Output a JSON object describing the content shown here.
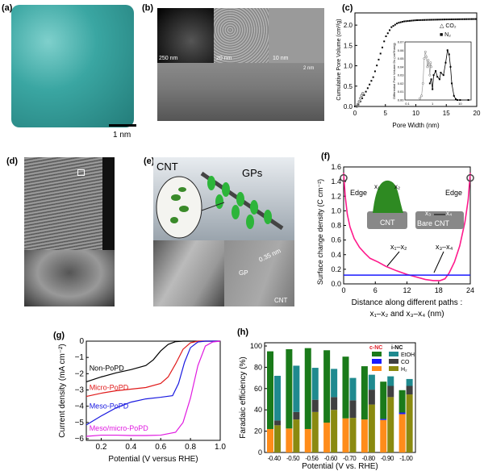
{
  "panels": {
    "a": {
      "label": "(a)",
      "scale": "1 nm"
    },
    "b": {
      "label": "(b)",
      "scales": [
        "250 nm",
        "20 nm",
        "10 nm",
        "2 nm"
      ]
    },
    "c": {
      "label": "(c)"
    },
    "d": {
      "label": "(d)"
    },
    "e": {
      "label": "(e)",
      "cnt": "CNT",
      "gps": "GPs",
      "gp": "GP",
      "spacing": "0.35 nm",
      "cnt2": "CNT"
    },
    "f": {
      "label": "(f)",
      "edge_left": "Edge",
      "edge_right": "Edge",
      "cnt": "CNT",
      "bare_cnt": "Bare CNT",
      "x1": "x₁",
      "x2": "x₂",
      "x3": "x₃",
      "x4": "x₄",
      "path12": "x₁–x₂",
      "path34": "x₃–x₄"
    },
    "g": {
      "label": "(g)"
    },
    "h": {
      "label": "(h)"
    }
  },
  "colors": {
    "cnc": "#e0202a",
    "h2_c": "#ff8c1a",
    "co_c": "#1a1aff",
    "etoh_c": "#1a7a1a",
    "h2_i": "#8a8a10",
    "co_i": "#404040",
    "etoh_i": "#1f8a8f"
  },
  "chart_data": [
    {
      "id": "c",
      "type": "scatter",
      "xlabel": "Pore Width (nm)",
      "ylabel": "Cumulative Pore Volume (cm³/g)",
      "xlim": [
        0,
        20
      ],
      "ylim": [
        0,
        2.3
      ],
      "xticks": [
        "0",
        "5",
        "10",
        "15",
        "20"
      ],
      "yticks": [
        "0.0",
        "0.5",
        "1.0",
        "1.5",
        "2.0"
      ],
      "legend": [
        "CO₂",
        "N₂"
      ],
      "legend_position": "top-right",
      "series": [
        {
          "name": "N₂",
          "x": [
            0,
            0.5,
            1,
            1.5,
            2,
            3,
            4,
            5,
            6,
            7,
            8,
            10,
            12,
            15,
            20
          ],
          "y": [
            0,
            0.02,
            0.15,
            0.28,
            0.42,
            0.72,
            1.2,
            1.7,
            1.95,
            2.05,
            2.09,
            2.12,
            2.13,
            2.14,
            2.15
          ]
        },
        {
          "name": "CO₂",
          "x": [
            0.3,
            0.5,
            0.7,
            0.9,
            1.1,
            1.3
          ],
          "y": [
            0,
            0.05,
            0.12,
            0.2,
            0.27,
            0.32
          ]
        }
      ],
      "inset": {
        "ylabel": "Differential Pore Volume Dv (cm³/nm/g)",
        "xticks": [
          "0.1",
          "1",
          "10"
        ],
        "yticks": [
          "0.00",
          "0.01",
          "0.02",
          "0.03",
          "0.04",
          "0.05",
          "0.06",
          "0.07"
        ],
        "series": [
          {
            "name": "CO₂",
            "x": [
              0.35,
              0.4,
              0.45,
              0.5,
              0.55,
              0.6,
              0.65,
              0.7,
              0.75,
              0.8,
              0.85,
              0.9
            ],
            "y": [
              0.002,
              0.005,
              0.02,
              0.05,
              0.058,
              0.052,
              0.04,
              0.048,
              0.042,
              0.03,
              0.045,
              0.04
            ]
          },
          {
            "name": "N₂",
            "x": [
              0.8,
              0.9,
              1,
              1.1,
              1.3,
              1.5,
              1.8,
              2,
              2.5,
              3,
              3.5,
              4,
              4.5,
              5,
              6,
              7,
              8,
              10,
              20
            ],
            "y": [
              0.02,
              0.025,
              0.013,
              0.03,
              0.035,
              0.028,
              0.025,
              0.033,
              0.03,
              0.045,
              0.06,
              0.055,
              0.04,
              0.02,
              0.005,
              0.001,
              0,
              0,
              0
            ]
          }
        ]
      }
    },
    {
      "id": "f",
      "type": "line",
      "xlabel": "Distance along different paths :",
      "xlabel2": "x₁–x₂ and x₃–x₄ (nm)",
      "ylabel": "Surface change density (C cm⁻²)",
      "xlim": [
        0,
        24
      ],
      "ylim": [
        0,
        1.6
      ],
      "xticks": [
        "0",
        "6",
        "12",
        "18",
        "24"
      ],
      "yticks": [
        "0.0",
        "0.2",
        "0.4",
        "0.6",
        "0.8",
        "1.0",
        "1.2",
        "1.4",
        "1.6"
      ],
      "series": [
        {
          "name": "x₁–x₂",
          "color": "#ff1a8c",
          "x": [
            0,
            0.3,
            0.7,
            1.2,
            2,
            3,
            4,
            5,
            6.5,
            8,
            10,
            12,
            14,
            15.5,
            17,
            18.3,
            19.2,
            20,
            21,
            22,
            23,
            23.6,
            24
          ],
          "y": [
            1.52,
            1.2,
            0.95,
            0.78,
            0.62,
            0.5,
            0.42,
            0.35,
            0.3,
            0.24,
            0.18,
            0.13,
            0.09,
            0.06,
            0.045,
            0.045,
            0.07,
            0.15,
            0.3,
            0.52,
            0.85,
            1.15,
            1.52
          ]
        },
        {
          "name": "x₃–x₄",
          "color": "#1a1aff",
          "x": [
            0,
            24
          ],
          "y": [
            0.12,
            0.12
          ]
        }
      ]
    },
    {
      "id": "g",
      "type": "line",
      "xlabel": "Potential (V versus RHE)",
      "ylabel": "Current density (mA cm⁻²)",
      "xlim": [
        0.1,
        1.0
      ],
      "ylim": [
        -6.2,
        0
      ],
      "xticks": [
        "0.2",
        "0.4",
        "0.6",
        "0.8",
        "1.0"
      ],
      "yticks": [
        "0",
        "−1",
        "−2",
        "−3",
        "−4",
        "−5",
        "−6"
      ],
      "series": [
        {
          "name": "Non-PoPD",
          "color": "#000000",
          "x": [
            0.1,
            0.2,
            0.3,
            0.4,
            0.5,
            0.55,
            0.6,
            0.65,
            0.7,
            0.75,
            0.8,
            1.0
          ],
          "y": [
            -2.5,
            -2.2,
            -1.95,
            -1.75,
            -1.5,
            -1.15,
            -0.6,
            -0.2,
            -0.03,
            0,
            0,
            0
          ]
        },
        {
          "name": "Micro-PoPD",
          "color": "#e01a1a",
          "x": [
            0.1,
            0.2,
            0.3,
            0.4,
            0.5,
            0.6,
            0.65,
            0.7,
            0.75,
            0.8,
            0.85,
            1.0
          ],
          "y": [
            -3.4,
            -3.2,
            -3.05,
            -2.95,
            -2.85,
            -2.6,
            -2.2,
            -1.4,
            -0.5,
            -0.1,
            0,
            0
          ]
        },
        {
          "name": "Meso-PoPD",
          "color": "#1a1ae0",
          "x": [
            0.1,
            0.2,
            0.3,
            0.4,
            0.5,
            0.6,
            0.68,
            0.72,
            0.76,
            0.8,
            0.85,
            0.9,
            1.0
          ],
          "y": [
            -5.15,
            -4.6,
            -4.1,
            -3.75,
            -3.55,
            -3.45,
            -3.35,
            -2.6,
            -1.3,
            -0.4,
            -0.05,
            0,
            0
          ]
        },
        {
          "name": "Meso/micro-PoPD",
          "color": "#e01ae0",
          "x": [
            0.1,
            0.2,
            0.3,
            0.4,
            0.5,
            0.6,
            0.7,
            0.75,
            0.8,
            0.85,
            0.9,
            0.95,
            1.0
          ],
          "y": [
            -5.85,
            -5.78,
            -5.78,
            -5.8,
            -5.8,
            -5.78,
            -5.6,
            -5.0,
            -3.5,
            -1.5,
            -0.3,
            -0.05,
            0
          ]
        }
      ]
    },
    {
      "id": "h",
      "type": "bar",
      "stacked": true,
      "xlabel": "Potential (V vs. RHE)",
      "ylabel": "Faradaic efficiency (%)",
      "ylim": [
        0,
        100
      ],
      "yticks": [
        "0",
        "20",
        "40",
        "60",
        "80",
        "100"
      ],
      "categories": [
        "-0.40",
        "-0.50",
        "-0.56",
        "-0.60",
        "-0.70",
        "-0.80",
        "-0.90",
        "-1.00"
      ],
      "legend": {
        "groups": [
          "c-NC",
          "i-NC"
        ],
        "products": [
          "EtOH",
          "CO",
          "H₂"
        ]
      },
      "legend_position": "top-right",
      "series": [
        {
          "group": "c-NC",
          "name": "H₂",
          "values": [
            22,
            22.5,
            22,
            28,
            32,
            31,
            30.5,
            36
          ]
        },
        {
          "group": "c-NC",
          "name": "CO",
          "values": [
            0,
            0,
            0,
            0,
            0,
            0,
            1,
            1.5
          ]
        },
        {
          "group": "c-NC",
          "name": "EtOH",
          "values": [
            73,
            74.5,
            76,
            68,
            58,
            50,
            35,
            21
          ]
        },
        {
          "group": "i-NC",
          "name": "H₂",
          "values": [
            25.5,
            31,
            38,
            40,
            32.5,
            45,
            52,
            54.5
          ]
        },
        {
          "group": "i-NC",
          "name": "CO",
          "values": [
            4.5,
            7,
            11.5,
            12,
            16.5,
            14,
            10.5,
            8
          ]
        },
        {
          "group": "i-NC",
          "name": "EtOH",
          "values": [
            42,
            43.5,
            30,
            26.5,
            21,
            14,
            9,
            6.5
          ]
        }
      ]
    }
  ]
}
